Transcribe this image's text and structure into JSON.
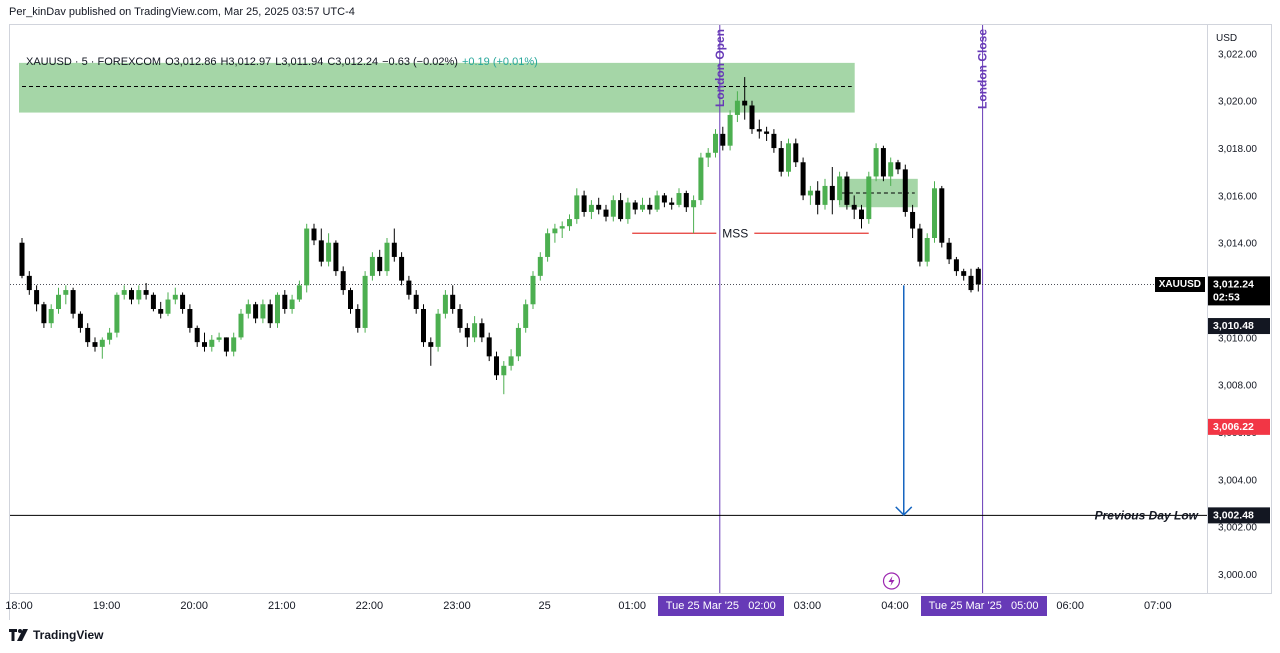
{
  "header": {
    "publisher": "Per_kinDav published on TradingView.com, Mar 25, 2025 03:57 UTC-4",
    "symbol": "XAUUSD · 5 · FOREXCOM",
    "open": "O3,012.86",
    "high": "H3,012.97",
    "low": "L3,011.94",
    "close": "C3,012.24",
    "change": "−0.63 (−0.02%)",
    "change2": "+0.19 (+0.01%)"
  },
  "footer": {
    "brand": "TradingView"
  },
  "colors": {
    "up": "#26a69a",
    "upBody": "#4caf50",
    "down": "#000000",
    "zone": "#a5d6a7",
    "mss": "#e53935",
    "vline": "#673ab7",
    "arrow": "#1565c0",
    "red_badge": "#f23645"
  },
  "chart_data": {
    "type": "candlestick",
    "title": "",
    "xlabel": "",
    "ylabel": "",
    "currency": "USD",
    "ylim": [
      2999.2,
      3023.2
    ],
    "y_ticks": [
      "3,022.00",
      "3,020.00",
      "3,018.00",
      "3,016.00",
      "3,014.00",
      "3,012.00",
      "3,010.00",
      "3,008.00",
      "3,006.00",
      "3,004.00",
      "3,002.00",
      "3,000.00"
    ],
    "y_tick_values": [
      3022,
      3020,
      3018,
      3016,
      3014,
      3012,
      3010,
      3008,
      3006,
      3004,
      3002,
      3000
    ],
    "x_ticks": [
      "18:00",
      "19:00",
      "20:00",
      "21:00",
      "22:00",
      "23:00",
      "25",
      "01:00",
      "03:00",
      "04:00",
      "06:00",
      "07:00"
    ],
    "x_tick_hours": [
      0,
      1,
      2,
      3,
      4,
      5,
      6,
      7,
      9,
      10,
      12,
      13
    ],
    "time_badges": [
      {
        "label": "Tue 25 Mar '25   02:00",
        "hour": 8
      },
      {
        "label": "Tue 25 Mar '25   05:00",
        "hour": 11
      }
    ],
    "last_price": {
      "symbol": "XAUUSD",
      "price": "3,012.24",
      "value": 3012.24,
      "countdown": "02:53"
    },
    "price_labels": [
      {
        "label": "3,010.48",
        "value": 3010.48,
        "style": "dark"
      },
      {
        "label": "3,006.22",
        "value": 3006.22,
        "style": "red"
      },
      {
        "label": "3,002.48",
        "value": 3002.48,
        "style": "dark"
      }
    ],
    "zones": [
      {
        "from_hour": 0,
        "to_hour": 9.54,
        "top": 3021.6,
        "bottom": 3019.5,
        "mid": 3020.6
      },
      {
        "from_hour": 9.36,
        "to_hour": 10.26,
        "top": 3016.7,
        "bottom": 3015.5,
        "mid": 3016.1
      }
    ],
    "mss": {
      "label": "MSS",
      "value": 3014.4,
      "from_hour": 7.0,
      "to_hour": 9.7,
      "label_hour": 8.12
    },
    "vertical_lines": [
      {
        "label": "London Open",
        "hour": 8
      },
      {
        "label": "London Close",
        "hour": 11
      }
    ],
    "horizontal_lines": [
      {
        "label": "Previous Day Low",
        "value": 3002.48
      }
    ],
    "arrow": {
      "hour": 10.1,
      "from": 3012.2,
      "to": 3002.5
    },
    "candles": [
      {
        "o": 3014.0,
        "h": 3014.2,
        "l": 3012.5,
        "c": 3012.6
      },
      {
        "o": 3012.6,
        "h": 3012.8,
        "l": 3011.8,
        "c": 3012.0
      },
      {
        "o": 3012.0,
        "h": 3012.2,
        "l": 3011.1,
        "c": 3011.4
      },
      {
        "o": 3011.4,
        "h": 3011.5,
        "l": 3010.4,
        "c": 3010.6
      },
      {
        "o": 3010.6,
        "h": 3011.4,
        "l": 3010.4,
        "c": 3011.2
      },
      {
        "o": 3011.2,
        "h": 3012.1,
        "l": 3011.0,
        "c": 3011.8
      },
      {
        "o": 3011.8,
        "h": 3012.2,
        "l": 3011.4,
        "c": 3012.0
      },
      {
        "o": 3012.0,
        "h": 3012.1,
        "l": 3010.8,
        "c": 3011.0
      },
      {
        "o": 3011.0,
        "h": 3011.1,
        "l": 3010.2,
        "c": 3010.4
      },
      {
        "o": 3010.4,
        "h": 3010.6,
        "l": 3009.6,
        "c": 3009.8
      },
      {
        "o": 3009.8,
        "h": 3010.0,
        "l": 3009.4,
        "c": 3009.6
      },
      {
        "o": 3009.6,
        "h": 3010.0,
        "l": 3009.1,
        "c": 3009.9
      },
      {
        "o": 3009.9,
        "h": 3010.4,
        "l": 3009.7,
        "c": 3010.2
      },
      {
        "o": 3010.2,
        "h": 3011.9,
        "l": 3010.0,
        "c": 3011.8
      },
      {
        "o": 3011.8,
        "h": 3012.2,
        "l": 3011.6,
        "c": 3012.0
      },
      {
        "o": 3012.0,
        "h": 3012.1,
        "l": 3011.4,
        "c": 3011.6
      },
      {
        "o": 3011.6,
        "h": 3012.2,
        "l": 3011.4,
        "c": 3012.0
      },
      {
        "o": 3012.0,
        "h": 3012.3,
        "l": 3011.6,
        "c": 3011.8
      },
      {
        "o": 3011.8,
        "h": 3011.9,
        "l": 3011.1,
        "c": 3011.2
      },
      {
        "o": 3011.2,
        "h": 3011.5,
        "l": 3010.8,
        "c": 3011.0
      },
      {
        "o": 3011.0,
        "h": 3011.9,
        "l": 3010.9,
        "c": 3011.6
      },
      {
        "o": 3011.6,
        "h": 3012.1,
        "l": 3011.4,
        "c": 3011.8
      },
      {
        "o": 3011.8,
        "h": 3011.9,
        "l": 3011.0,
        "c": 3011.2
      },
      {
        "o": 3011.2,
        "h": 3011.4,
        "l": 3010.2,
        "c": 3010.4
      },
      {
        "o": 3010.4,
        "h": 3010.5,
        "l": 3009.6,
        "c": 3009.8
      },
      {
        "o": 3009.8,
        "h": 3010.2,
        "l": 3009.4,
        "c": 3009.6
      },
      {
        "o": 3009.6,
        "h": 3010.1,
        "l": 3009.4,
        "c": 3009.9
      },
      {
        "o": 3009.9,
        "h": 3010.2,
        "l": 3009.8,
        "c": 3010.0
      },
      {
        "o": 3010.0,
        "h": 3010.0,
        "l": 3009.2,
        "c": 3009.4
      },
      {
        "o": 3009.4,
        "h": 3010.2,
        "l": 3009.2,
        "c": 3010.0
      },
      {
        "o": 3010.0,
        "h": 3011.2,
        "l": 3009.9,
        "c": 3011.0
      },
      {
        "o": 3011.0,
        "h": 3011.6,
        "l": 3010.8,
        "c": 3011.4
      },
      {
        "o": 3011.4,
        "h": 3011.5,
        "l": 3010.6,
        "c": 3010.8
      },
      {
        "o": 3010.8,
        "h": 3011.6,
        "l": 3010.6,
        "c": 3011.4
      },
      {
        "o": 3011.4,
        "h": 3011.6,
        "l": 3010.4,
        "c": 3010.6
      },
      {
        "o": 3010.6,
        "h": 3011.9,
        "l": 3010.4,
        "c": 3011.8
      },
      {
        "o": 3011.8,
        "h": 3012.0,
        "l": 3011.0,
        "c": 3011.2
      },
      {
        "o": 3011.2,
        "h": 3011.8,
        "l": 3011.0,
        "c": 3011.6
      },
      {
        "o": 3011.6,
        "h": 3012.4,
        "l": 3011.5,
        "c": 3012.2
      },
      {
        "o": 3012.2,
        "h": 3014.8,
        "l": 3011.9,
        "c": 3014.6
      },
      {
        "o": 3014.6,
        "h": 3014.8,
        "l": 3013.9,
        "c": 3014.1
      },
      {
        "o": 3014.1,
        "h": 3014.6,
        "l": 3013.0,
        "c": 3013.2
      },
      {
        "o": 3013.2,
        "h": 3014.4,
        "l": 3013.0,
        "c": 3014.0
      },
      {
        "o": 3014.0,
        "h": 3014.1,
        "l": 3012.6,
        "c": 3012.8
      },
      {
        "o": 3012.8,
        "h": 3013.0,
        "l": 3011.8,
        "c": 3012.0
      },
      {
        "o": 3012.0,
        "h": 3012.1,
        "l": 3011.0,
        "c": 3011.2
      },
      {
        "o": 3011.2,
        "h": 3011.4,
        "l": 3010.2,
        "c": 3010.4
      },
      {
        "o": 3010.4,
        "h": 3012.8,
        "l": 3010.2,
        "c": 3012.6
      },
      {
        "o": 3012.6,
        "h": 3013.6,
        "l": 3012.4,
        "c": 3013.4
      },
      {
        "o": 3013.4,
        "h": 3013.7,
        "l": 3012.6,
        "c": 3012.8
      },
      {
        "o": 3012.8,
        "h": 3014.2,
        "l": 3012.6,
        "c": 3014.0
      },
      {
        "o": 3014.0,
        "h": 3014.6,
        "l": 3013.2,
        "c": 3013.4
      },
      {
        "o": 3013.4,
        "h": 3013.6,
        "l": 3012.2,
        "c": 3012.4
      },
      {
        "o": 3012.4,
        "h": 3012.6,
        "l": 3011.6,
        "c": 3011.8
      },
      {
        "o": 3011.8,
        "h": 3012.0,
        "l": 3011.0,
        "c": 3011.2
      },
      {
        "o": 3011.2,
        "h": 3011.4,
        "l": 3009.6,
        "c": 3009.8
      },
      {
        "o": 3009.8,
        "h": 3010.0,
        "l": 3008.8,
        "c": 3009.6
      },
      {
        "o": 3009.6,
        "h": 3011.2,
        "l": 3009.4,
        "c": 3011.0
      },
      {
        "o": 3011.0,
        "h": 3012.0,
        "l": 3010.8,
        "c": 3011.8
      },
      {
        "o": 3011.8,
        "h": 3012.2,
        "l": 3011.0,
        "c": 3011.2
      },
      {
        "o": 3011.2,
        "h": 3011.4,
        "l": 3010.2,
        "c": 3010.4
      },
      {
        "o": 3010.4,
        "h": 3010.6,
        "l": 3009.6,
        "c": 3010.0
      },
      {
        "o": 3010.0,
        "h": 3010.9,
        "l": 3009.8,
        "c": 3010.6
      },
      {
        "o": 3010.6,
        "h": 3010.8,
        "l": 3009.8,
        "c": 3010.0
      },
      {
        "o": 3010.0,
        "h": 3010.2,
        "l": 3009.0,
        "c": 3009.2
      },
      {
        "o": 3009.2,
        "h": 3009.4,
        "l": 3008.2,
        "c": 3008.4
      },
      {
        "o": 3008.4,
        "h": 3009.0,
        "l": 3007.6,
        "c": 3008.8
      },
      {
        "o": 3008.8,
        "h": 3009.5,
        "l": 3008.6,
        "c": 3009.2
      },
      {
        "o": 3009.2,
        "h": 3010.6,
        "l": 3009.0,
        "c": 3010.4
      },
      {
        "o": 3010.4,
        "h": 3011.6,
        "l": 3010.2,
        "c": 3011.4
      },
      {
        "o": 3011.4,
        "h": 3012.8,
        "l": 3011.2,
        "c": 3012.6
      },
      {
        "o": 3012.6,
        "h": 3013.6,
        "l": 3012.4,
        "c": 3013.4
      },
      {
        "o": 3013.4,
        "h": 3014.6,
        "l": 3013.2,
        "c": 3014.4
      },
      {
        "o": 3014.4,
        "h": 3014.8,
        "l": 3014.0,
        "c": 3014.6
      },
      {
        "o": 3014.6,
        "h": 3014.9,
        "l": 3014.2,
        "c": 3014.7
      },
      {
        "o": 3014.7,
        "h": 3015.2,
        "l": 3014.5,
        "c": 3015.0
      },
      {
        "o": 3015.0,
        "h": 3016.3,
        "l": 3014.8,
        "c": 3016.0
      },
      {
        "o": 3016.0,
        "h": 3016.2,
        "l": 3015.1,
        "c": 3015.3
      },
      {
        "o": 3015.3,
        "h": 3015.8,
        "l": 3015.0,
        "c": 3015.6
      },
      {
        "o": 3015.6,
        "h": 3015.9,
        "l": 3015.2,
        "c": 3015.4
      },
      {
        "o": 3015.4,
        "h": 3015.6,
        "l": 3014.9,
        "c": 3015.1
      },
      {
        "o": 3015.1,
        "h": 3016.0,
        "l": 3014.9,
        "c": 3015.8
      },
      {
        "o": 3015.8,
        "h": 3016.1,
        "l": 3014.9,
        "c": 3015.0
      },
      {
        "o": 3015.0,
        "h": 3015.9,
        "l": 3014.8,
        "c": 3015.7
      },
      {
        "o": 3015.7,
        "h": 3015.8,
        "l": 3015.2,
        "c": 3015.4
      },
      {
        "o": 3015.4,
        "h": 3015.9,
        "l": 3015.3,
        "c": 3015.6
      },
      {
        "o": 3015.6,
        "h": 3015.9,
        "l": 3015.2,
        "c": 3015.4
      },
      {
        "o": 3015.4,
        "h": 3016.2,
        "l": 3015.3,
        "c": 3016.0
      },
      {
        "o": 3016.0,
        "h": 3016.1,
        "l": 3015.5,
        "c": 3015.7
      },
      {
        "o": 3015.7,
        "h": 3015.9,
        "l": 3015.4,
        "c": 3015.6
      },
      {
        "o": 3015.6,
        "h": 3016.3,
        "l": 3015.5,
        "c": 3016.1
      },
      {
        "o": 3016.1,
        "h": 3016.2,
        "l": 3015.3,
        "c": 3015.5
      },
      {
        "o": 3015.5,
        "h": 3016.0,
        "l": 3014.4,
        "c": 3015.8
      },
      {
        "o": 3015.8,
        "h": 3017.8,
        "l": 3015.6,
        "c": 3017.6
      },
      {
        "o": 3017.6,
        "h": 3018.0,
        "l": 3017.2,
        "c": 3017.8
      },
      {
        "o": 3017.8,
        "h": 3018.8,
        "l": 3017.6,
        "c": 3018.6
      },
      {
        "o": 3018.6,
        "h": 3018.9,
        "l": 3017.9,
        "c": 3018.1
      },
      {
        "o": 3018.1,
        "h": 3019.6,
        "l": 3017.9,
        "c": 3019.4
      },
      {
        "o": 3019.4,
        "h": 3020.4,
        "l": 3019.1,
        "c": 3020.0
      },
      {
        "o": 3020.0,
        "h": 3021.0,
        "l": 3019.2,
        "c": 3019.8
      },
      {
        "o": 3019.8,
        "h": 3020.0,
        "l": 3018.6,
        "c": 3018.8
      },
      {
        "o": 3018.8,
        "h": 3019.2,
        "l": 3018.4,
        "c": 3018.7
      },
      {
        "o": 3018.7,
        "h": 3018.9,
        "l": 3018.3,
        "c": 3018.6
      },
      {
        "o": 3018.6,
        "h": 3018.8,
        "l": 3017.8,
        "c": 3018.0
      },
      {
        "o": 3018.0,
        "h": 3018.3,
        "l": 3016.8,
        "c": 3017.0
      },
      {
        "o": 3017.0,
        "h": 3018.4,
        "l": 3016.8,
        "c": 3018.2
      },
      {
        "o": 3018.2,
        "h": 3018.4,
        "l": 3017.2,
        "c": 3017.4
      },
      {
        "o": 3017.4,
        "h": 3017.6,
        "l": 3015.8,
        "c": 3016.0
      },
      {
        "o": 3016.0,
        "h": 3016.4,
        "l": 3015.6,
        "c": 3016.2
      },
      {
        "o": 3016.2,
        "h": 3016.6,
        "l": 3015.2,
        "c": 3015.6
      },
      {
        "o": 3015.6,
        "h": 3016.7,
        "l": 3015.4,
        "c": 3016.4
      },
      {
        "o": 3016.4,
        "h": 3017.2,
        "l": 3015.2,
        "c": 3015.8
      },
      {
        "o": 3015.8,
        "h": 3017.0,
        "l": 3015.6,
        "c": 3016.8
      },
      {
        "o": 3016.8,
        "h": 3017.0,
        "l": 3015.4,
        "c": 3015.6
      },
      {
        "o": 3015.6,
        "h": 3016.0,
        "l": 3015.0,
        "c": 3015.4
      },
      {
        "o": 3015.4,
        "h": 3015.6,
        "l": 3014.6,
        "c": 3015.0
      },
      {
        "o": 3015.0,
        "h": 3017.0,
        "l": 3014.8,
        "c": 3016.8
      },
      {
        "o": 3016.8,
        "h": 3018.2,
        "l": 3016.6,
        "c": 3018.0
      },
      {
        "o": 3018.0,
        "h": 3018.1,
        "l": 3016.6,
        "c": 3016.8
      },
      {
        "o": 3016.8,
        "h": 3017.6,
        "l": 3016.4,
        "c": 3017.4
      },
      {
        "o": 3017.4,
        "h": 3017.5,
        "l": 3016.9,
        "c": 3017.1
      },
      {
        "o": 3017.1,
        "h": 3017.3,
        "l": 3015.1,
        "c": 3015.3
      },
      {
        "o": 3015.3,
        "h": 3015.6,
        "l": 3014.2,
        "c": 3014.6
      },
      {
        "o": 3014.6,
        "h": 3014.8,
        "l": 3013.0,
        "c": 3013.2
      },
      {
        "o": 3013.2,
        "h": 3014.4,
        "l": 3013.0,
        "c": 3014.2
      },
      {
        "o": 3014.2,
        "h": 3016.6,
        "l": 3014.0,
        "c": 3016.3
      },
      {
        "o": 3016.3,
        "h": 3016.4,
        "l": 3013.8,
        "c": 3014.0
      },
      {
        "o": 3014.0,
        "h": 3014.2,
        "l": 3013.1,
        "c": 3013.3
      },
      {
        "o": 3013.3,
        "h": 3013.4,
        "l": 3012.6,
        "c": 3012.8
      },
      {
        "o": 3012.8,
        "h": 3012.9,
        "l": 3012.4,
        "c": 3012.6
      },
      {
        "o": 3012.6,
        "h": 3012.9,
        "l": 3011.9,
        "c": 3012.0
      },
      {
        "o": 3012.9,
        "h": 3012.97,
        "l": 3011.94,
        "c": 3012.24
      }
    ]
  }
}
